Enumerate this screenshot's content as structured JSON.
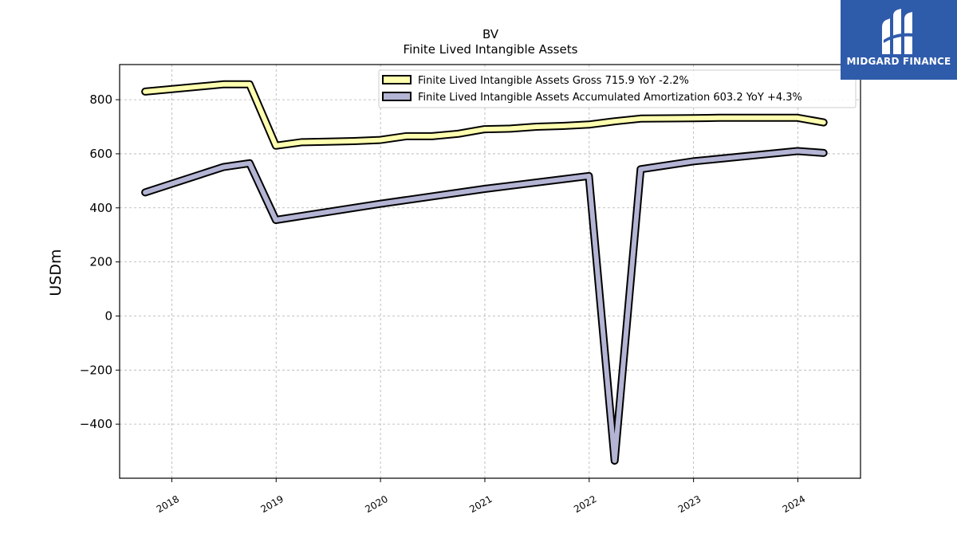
{
  "brand": {
    "name": "MIDGARD FINANCE",
    "bg_color": "#2f5bab"
  },
  "chart_data": {
    "type": "line",
    "title": "BV",
    "subtitle": "Finite Lived Intangible Assets",
    "xlabel": "",
    "ylabel": "USDm",
    "xlim": [
      2017.5,
      2024.6
    ],
    "ylim": [
      -600,
      930
    ],
    "x_ticks": [
      2018,
      2019,
      2020,
      2021,
      2022,
      2023,
      2024
    ],
    "x_tick_labels": [
      "2018",
      "2019",
      "2020",
      "2021",
      "2022",
      "2023",
      "2024"
    ],
    "y_ticks": [
      -400,
      -200,
      0,
      200,
      400,
      600,
      800
    ],
    "y_tick_labels": [
      "−400",
      "−200",
      "0",
      "200",
      "400",
      "600",
      "800"
    ],
    "grid": true,
    "legend_position": "top-right",
    "series": [
      {
        "name": "Finite Lived Intangible Assets Gross",
        "legend_label": "Finite Lived Intangible Assets Gross  715.9 YoY -2.2%",
        "color": "#ffffb0",
        "x": [
          "2017-09-30",
          "2018-06-30",
          "2018-09-30",
          "2018-12-31",
          "2019-03-31",
          "2019-06-30",
          "2019-09-30",
          "2019-12-31",
          "2020-03-31",
          "2020-06-30",
          "2020-09-30",
          "2020-12-31",
          "2021-03-31",
          "2021-06-30",
          "2021-09-30",
          "2021-12-31",
          "2022-03-31",
          "2022-06-30",
          "2022-09-30",
          "2022-12-31",
          "2023-03-31",
          "2023-06-30",
          "2023-09-30",
          "2023-12-31",
          "2024-03-31"
        ],
        "y": [
          830,
          857,
          857,
          630,
          643,
          645,
          647,
          651,
          665,
          665,
          674,
          691,
          693,
          700,
          703,
          708,
          720,
          730,
          731,
          732,
          733,
          733,
          733,
          733,
          716
        ]
      },
      {
        "name": "Finite Lived Intangible Assets Accumulated Amortization",
        "legend_label": "Finite Lived Intangible Assets Accumulated Amortization  603.2 YoY +4.3%",
        "color": "#b4b4d4",
        "x": [
          "2017-09-30",
          "2018-06-30",
          "2018-09-30",
          "2018-12-31",
          "2019-12-31",
          "2020-12-31",
          "2021-12-31",
          "2022-03-31",
          "2022-06-30",
          "2022-12-31",
          "2023-12-31",
          "2024-03-31"
        ],
        "y": [
          457,
          551,
          565,
          355,
          415,
          470,
          518,
          -535,
          543,
          572,
          610,
          603
        ]
      }
    ]
  }
}
